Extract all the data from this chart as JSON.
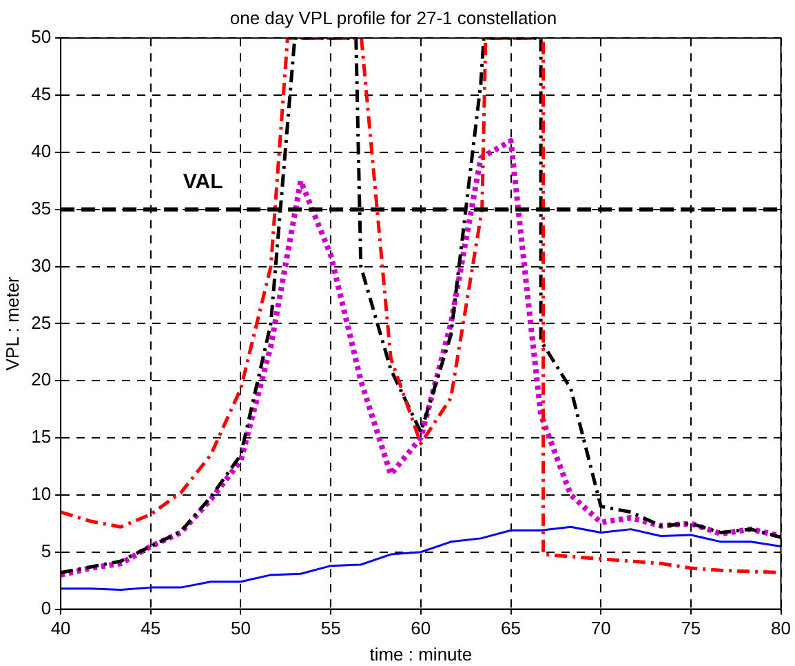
{
  "chart_data": {
    "type": "line",
    "title": "one day VPL profile for 27-1 constellation",
    "xlabel": "time : minute",
    "ylabel": "VPL : meter",
    "xlim": [
      40,
      80
    ],
    "xticks": [
      40,
      45,
      50,
      55,
      60,
      65,
      70,
      75,
      80
    ],
    "ylim": [
      0,
      50
    ],
    "yticks": [
      0,
      5,
      10,
      15,
      20,
      25,
      30,
      35,
      40,
      45,
      50
    ],
    "grid": true,
    "legend": false,
    "marker": "none",
    "ref_lines": [
      {
        "axis": "y",
        "value": 35,
        "label": "VAL",
        "color": "#000000",
        "line_style": "dashed"
      }
    ],
    "series": [
      {
        "color": "#0000ff",
        "line_style": "solid",
        "x": [
          40,
          41.67,
          43.33,
          45,
          46.67,
          48.33,
          50,
          51.67,
          53.33,
          55,
          56.67,
          58.33,
          60,
          61.67,
          63.33,
          65,
          66.67,
          68.33,
          70,
          71.67,
          73.33,
          75,
          76.67,
          78.33,
          80
        ],
        "values": [
          1.8,
          1.8,
          1.7,
          1.9,
          1.9,
          2.4,
          2.4,
          3.0,
          3.1,
          3.8,
          3.9,
          4.8,
          5.0,
          5.9,
          6.2,
          6.9,
          6.9,
          7.2,
          6.7,
          7.0,
          6.4,
          6.5,
          5.9,
          5.9,
          5.5
        ]
      },
      {
        "color": "#ff0000",
        "line_style": "dashed",
        "x": [
          40,
          41.67,
          43.33,
          45,
          46.67,
          48.33,
          50,
          51.67,
          52.6,
          56.7,
          58.33,
          60,
          61.67,
          63.4,
          63.6,
          66.8,
          66.8,
          70,
          71.67,
          73.33,
          75,
          76.67,
          78.33,
          80
        ],
        "values": [
          8.5,
          7.7,
          7.2,
          8.3,
          10.2,
          13.5,
          19.3,
          30,
          50,
          50,
          22,
          14.5,
          18.5,
          35,
          50,
          50,
          4.8,
          4.4,
          4.2,
          4.0,
          3.6,
          3.4,
          3.3,
          3.2
        ]
      },
      {
        "color": "#000000",
        "line_style": "dashed",
        "x": [
          40,
          41.67,
          43.33,
          45,
          46.67,
          48.33,
          50,
          51.67,
          53.0,
          56.4,
          56.67,
          58.33,
          60,
          61.67,
          63.33,
          63.5,
          66.67,
          66.67,
          68.33,
          70,
          71.67,
          73.33,
          75,
          76.67,
          78.33,
          80
        ],
        "values": [
          3.2,
          3.7,
          4.2,
          5.5,
          6.8,
          9.8,
          13.5,
          25,
          50,
          50,
          30,
          21,
          15.5,
          24,
          46,
          50,
          50,
          23.5,
          19.3,
          9,
          8.5,
          7.3,
          7.5,
          6.7,
          7.0,
          6.3
        ]
      },
      {
        "color": "#cc00cc",
        "line_style": "dotted",
        "x": [
          40,
          41.67,
          43.33,
          45,
          46.67,
          48.33,
          50,
          51.67,
          53.33,
          55,
          56.67,
          58.33,
          60,
          61.67,
          63.33,
          65,
          66.1,
          66.67,
          68.33,
          70,
          71.67,
          73.33,
          75,
          76.67,
          78.33,
          80
        ],
        "values": [
          3.0,
          3.6,
          4.0,
          5.5,
          6.7,
          9.6,
          13.0,
          23,
          37.5,
          31,
          20,
          11.8,
          15,
          25,
          39.5,
          41,
          25,
          17,
          10,
          7.6,
          8,
          7.3,
          7.5,
          6.6,
          7.0,
          6.4
        ]
      }
    ]
  }
}
